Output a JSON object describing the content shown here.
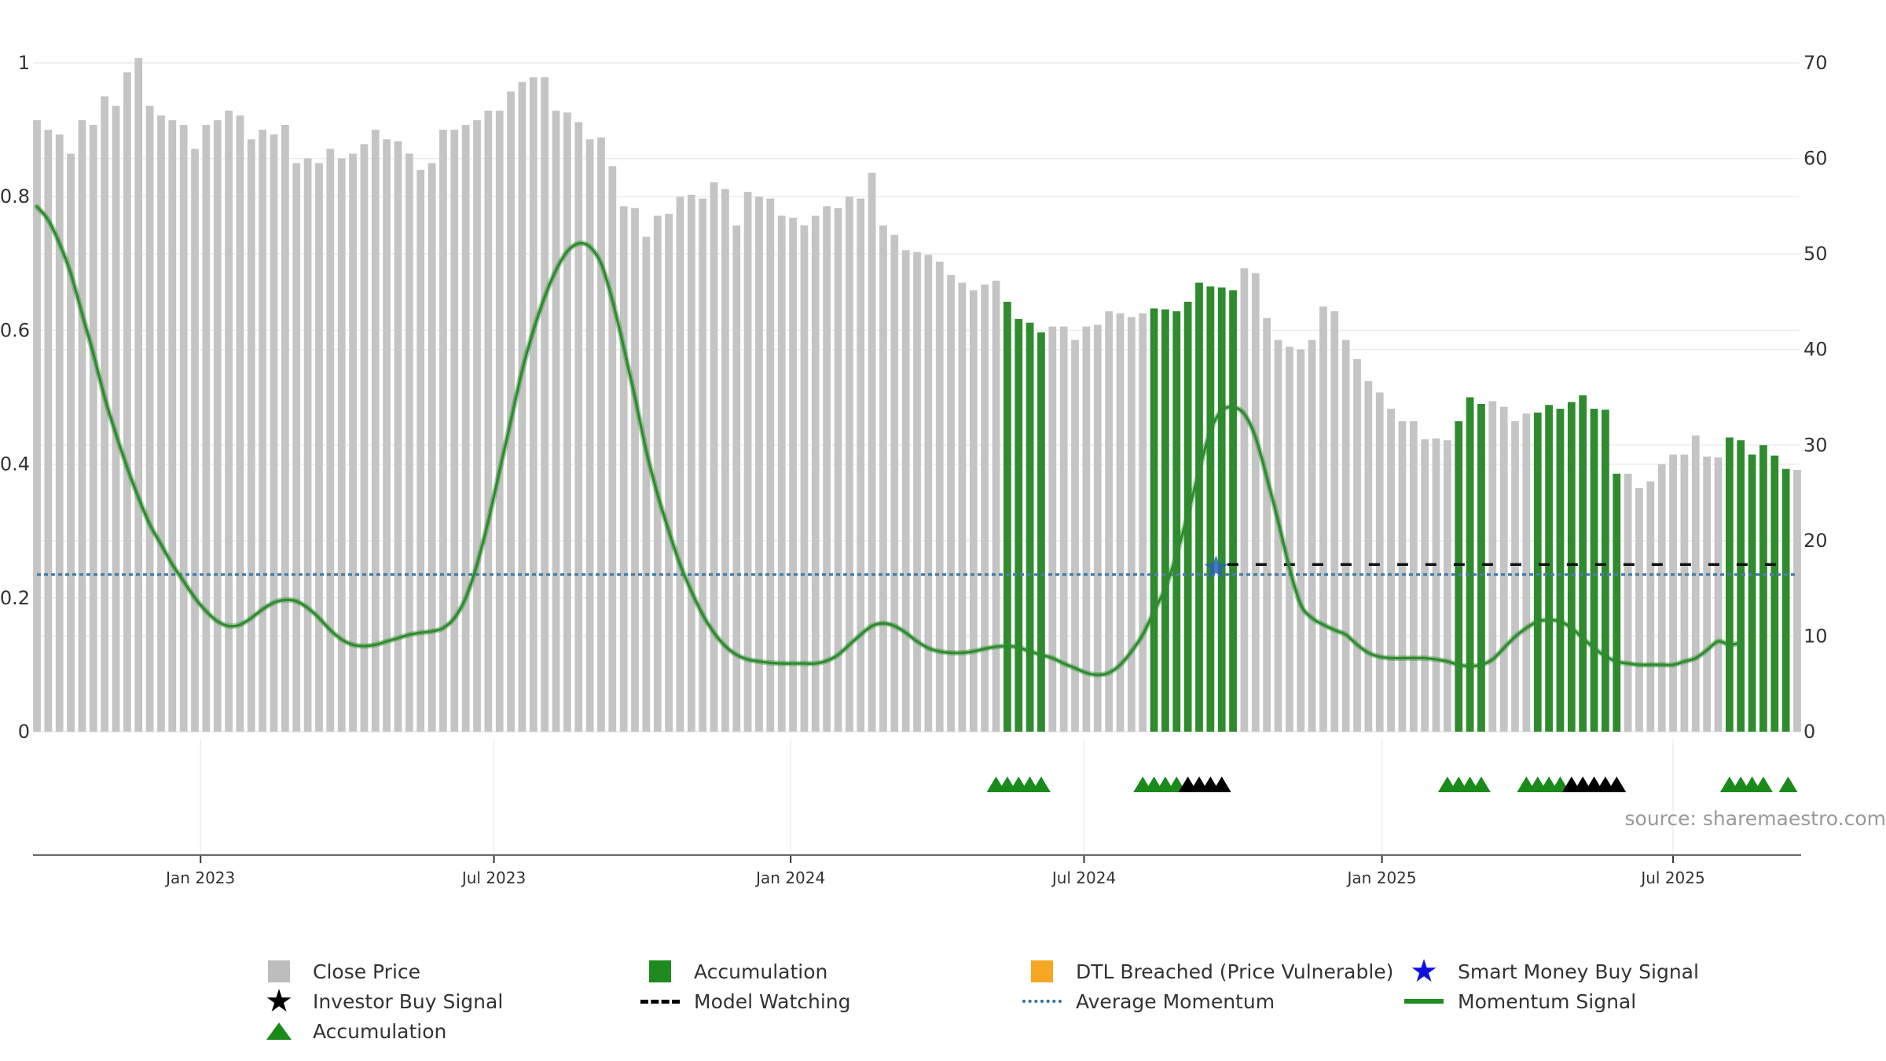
{
  "chart_data": {
    "type": "bar",
    "source": "source: sharemaestro.com",
    "left_axis": {
      "ticks": [
        "0",
        "0.2",
        "0.4",
        "0.6",
        "0.8",
        "1"
      ],
      "ylim": [
        0,
        1
      ]
    },
    "right_axis": {
      "ticks": [
        "0",
        "10",
        "20",
        "30",
        "40",
        "50",
        "60",
        "70"
      ],
      "ylim": [
        0,
        70
      ]
    },
    "x_ticks": [
      {
        "label": "Jan 2023",
        "index": 14.5
      },
      {
        "label": "Jul 2023",
        "index": 40.5
      },
      {
        "label": "Jan 2024",
        "index": 66.8
      },
      {
        "label": "Jul 2024",
        "index": 92.8
      },
      {
        "label": "Jan 2025",
        "index": 119.2
      },
      {
        "label": "Jul 2025",
        "index": 145.0
      }
    ],
    "close_price": [
      64,
      63,
      62.5,
      60.5,
      64,
      63.5,
      66.5,
      65.5,
      69,
      70.5,
      65.5,
      64.5,
      64,
      63.5,
      61,
      63.5,
      64,
      65,
      64.5,
      62,
      63,
      62.5,
      63.5,
      59.5,
      60,
      59.5,
      61,
      60,
      60.5,
      61.5,
      63,
      62,
      61.8,
      60.5,
      58.8,
      59.5,
      63,
      63,
      63.5,
      64,
      65,
      65,
      67,
      68,
      68.5,
      68.5,
      65,
      64.8,
      63.8,
      62,
      62.2,
      59.2,
      55,
      54.8,
      51.8,
      54,
      54.2,
      56,
      56.2,
      55.8,
      57.5,
      56.8,
      53,
      56.5,
      56,
      55.8,
      54,
      53.8,
      53,
      54,
      55,
      54.8,
      56,
      55.8,
      58.5,
      53,
      52,
      50.4,
      50.2,
      49.9,
      49.2,
      47.8,
      47,
      46.2,
      46.8,
      47.2,
      45,
      43.2,
      42.8,
      41.8,
      42.4,
      42.4,
      41,
      42.4,
      42.6,
      44,
      43.8,
      43.4,
      43.8,
      44.3,
      44.2,
      44,
      45,
      47,
      46.6,
      46.5,
      46.2,
      48.5,
      48,
      43.3,
      41,
      40.3,
      40,
      41,
      44.5,
      44,
      41,
      39,
      36.7,
      35.5,
      33.8,
      32.5,
      32.5,
      30.6,
      30.7,
      30.5,
      32.5,
      35,
      34.3,
      34.6,
      34,
      32.5,
      33.3,
      33.4,
      34.2,
      33.8,
      34.5,
      35.2,
      33.8,
      33.7,
      27,
      27,
      25.5,
      26.2,
      28,
      29,
      29,
      31,
      28.8,
      28.7,
      30.8,
      30.5,
      29,
      30,
      28.9,
      27.5,
      27.4
    ],
    "accumulation_bars": [
      [
        86,
        89
      ],
      [
        99,
        106
      ],
      [
        126,
        128
      ],
      [
        133,
        140
      ],
      [
        150,
        155
      ]
    ],
    "accumulation_triangles": [
      [
        85,
        89
      ],
      [
        98,
        101
      ],
      [
        125,
        128
      ],
      [
        132,
        135
      ]
    ],
    "investor_buy_triangles": [
      [
        102,
        105
      ],
      [
        136,
        140
      ]
    ],
    "smart_money_signal": {
      "index": 104.5,
      "value": 0.245
    },
    "model_watching": {
      "start_index": 105.5,
      "end_index": 155,
      "value": 0.25
    },
    "average_momentum": 0.235,
    "momentum": [
      0.785,
      0.765,
      0.73,
      0.685,
      0.625,
      0.565,
      0.5,
      0.445,
      0.395,
      0.35,
      0.31,
      0.28,
      0.25,
      0.225,
      0.2,
      0.18,
      0.165,
      0.158,
      0.16,
      0.17,
      0.183,
      0.193,
      0.197,
      0.195,
      0.185,
      0.17,
      0.152,
      0.138,
      0.13,
      0.128,
      0.13,
      0.135,
      0.14,
      0.145,
      0.148,
      0.15,
      0.155,
      0.17,
      0.2,
      0.25,
      0.315,
      0.39,
      0.465,
      0.54,
      0.6,
      0.65,
      0.69,
      0.718,
      0.73,
      0.725,
      0.7,
      0.645,
      0.575,
      0.5,
      0.42,
      0.355,
      0.3,
      0.25,
      0.21,
      0.175,
      0.148,
      0.128,
      0.115,
      0.108,
      0.105,
      0.103,
      0.102,
      0.102,
      0.102,
      0.102,
      0.106,
      0.115,
      0.13,
      0.145,
      0.158,
      0.162,
      0.158,
      0.148,
      0.135,
      0.125,
      0.12,
      0.118,
      0.118,
      0.12,
      0.124,
      0.127,
      0.128,
      0.126,
      0.12,
      0.115,
      0.11,
      0.102,
      0.095,
      0.088,
      0.085,
      0.088,
      0.1,
      0.12,
      0.145,
      0.18,
      0.215,
      0.265,
      0.325,
      0.39,
      0.45,
      0.48,
      0.485,
      0.475,
      0.44,
      0.38,
      0.315,
      0.245,
      0.19,
      0.17,
      0.16,
      0.152,
      0.145,
      0.13,
      0.118,
      0.112,
      0.11,
      0.11,
      0.11,
      0.11,
      0.108,
      0.105,
      0.1,
      0.098,
      0.1,
      0.108,
      0.125,
      0.142,
      0.155,
      0.165,
      0.167,
      0.165,
      0.155,
      0.14,
      0.125,
      0.113,
      0.105,
      0.102,
      0.1,
      0.1,
      0.1,
      0.1,
      0.105,
      0.11,
      0.122,
      0.135,
      0.13,
      0.133
    ]
  },
  "legend": [
    {
      "label": "Close Price",
      "symbol": "square",
      "color": "#bdbdbd"
    },
    {
      "label": "Accumulation",
      "symbol": "square",
      "color": "#1f8a1f"
    },
    {
      "label": "DTL Breached (Price Vulnerable)",
      "symbol": "square",
      "color": "#f5a623"
    },
    {
      "label": "Smart Money Buy Signal",
      "symbol": "star",
      "color": "#1010dd"
    },
    {
      "label": "Investor Buy Signal",
      "symbol": "star",
      "color": "#000000"
    },
    {
      "label": "Model Watching",
      "symbol": "dash",
      "color": "#000000"
    },
    {
      "label": "Average Momentum",
      "symbol": "dot",
      "color": "#2e6fa3"
    },
    {
      "label": "Momentum Signal",
      "symbol": "line",
      "color": "#1f8a1f"
    },
    {
      "label": "Accumulation",
      "symbol": "triangle",
      "color": "#1a8a1a"
    }
  ],
  "colors": {
    "close_bar": "#c4c4c4",
    "accum_bar": "#2e8b2e",
    "momentum_line": "#2e8b2e",
    "avg_line": "#4a7ea8",
    "triangle_green": "#1a8a1a",
    "triangle_black": "#000000",
    "star_blue": "#2a5fb8"
  }
}
